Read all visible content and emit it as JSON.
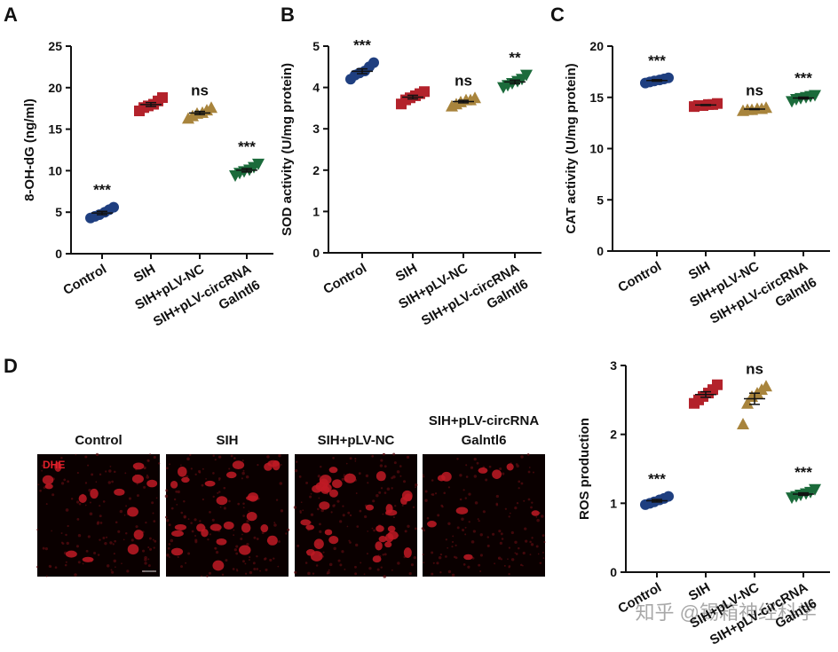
{
  "chart_data": [
    {
      "type": "dot",
      "panel": "A",
      "ylabel": "8-OH-dG (ng/ml)",
      "categories": [
        [
          "Control"
        ],
        [
          "SIH"
        ],
        [
          "SIH+pLV-NC"
        ],
        [
          "SIH+pLV-circRNA",
          "Galntl6"
        ]
      ],
      "values": [
        [
          4.3,
          4.5,
          4.7,
          5.0,
          5.3,
          5.6
        ],
        [
          17.2,
          17.6,
          17.8,
          18.0,
          18.4,
          18.8
        ],
        [
          16.3,
          16.6,
          16.9,
          17.0,
          17.3,
          17.6
        ],
        [
          9.4,
          9.7,
          9.9,
          10.1,
          10.4,
          10.8
        ]
      ],
      "colors": [
        "#1f3f80",
        "#b3222b",
        "#a8843c",
        "#1b6b3b"
      ],
      "markers": [
        "circle",
        "square",
        "triangle-up",
        "triangle-down"
      ],
      "annotations": [
        "***",
        null,
        "ns",
        "***"
      ],
      "ylim": [
        0,
        25
      ],
      "yticks": [
        0,
        5,
        10,
        15,
        20,
        25
      ]
    },
    {
      "type": "dot",
      "panel": "B",
      "ylabel": "SOD activity (U/mg protein)",
      "categories": [
        [
          "Control"
        ],
        [
          "SIH"
        ],
        [
          "SIH+pLV-NC"
        ],
        [
          "SIH+pLV-circRNA",
          "Galntl6"
        ]
      ],
      "values": [
        [
          4.2,
          4.3,
          4.35,
          4.4,
          4.5,
          4.6
        ],
        [
          3.6,
          3.7,
          3.75,
          3.8,
          3.85,
          3.9
        ],
        [
          3.55,
          3.6,
          3.65,
          3.7,
          3.7,
          3.75
        ],
        [
          4.0,
          4.05,
          4.1,
          4.15,
          4.2,
          4.3
        ]
      ],
      "colors": [
        "#1f3f80",
        "#b3222b",
        "#a8843c",
        "#1b6b3b"
      ],
      "markers": [
        "circle",
        "square",
        "triangle-up",
        "triangle-down"
      ],
      "annotations": [
        "***",
        null,
        "ns",
        "**"
      ],
      "ylim": [
        0,
        5
      ],
      "yticks": [
        0,
        1,
        2,
        3,
        4,
        5
      ]
    },
    {
      "type": "dot",
      "panel": "C",
      "ylabel": "CAT activity (U/mg protein)",
      "categories": [
        [
          "Control"
        ],
        [
          "SIH"
        ],
        [
          "SIH+pLV-NC"
        ],
        [
          "SIH+pLV-circRNA",
          "Galntl6"
        ]
      ],
      "values": [
        [
          16.4,
          16.5,
          16.6,
          16.7,
          16.8,
          16.9
        ],
        [
          14.1,
          14.2,
          14.2,
          14.3,
          14.3,
          14.4
        ],
        [
          13.7,
          13.8,
          13.8,
          13.9,
          13.9,
          14.0
        ],
        [
          14.6,
          14.8,
          14.9,
          15.0,
          15.1,
          15.2
        ]
      ],
      "colors": [
        "#1f3f80",
        "#b3222b",
        "#a8843c",
        "#1b6b3b"
      ],
      "markers": [
        "circle",
        "square",
        "triangle-up",
        "triangle-down"
      ],
      "annotations": [
        "***",
        null,
        "ns",
        "***"
      ],
      "ylim": [
        0,
        20
      ],
      "yticks": [
        0,
        5,
        10,
        15,
        20
      ]
    },
    {
      "type": "dot",
      "ylabel": "ROS production",
      "categories": [
        [
          "Control"
        ],
        [
          "SIH"
        ],
        [
          "SIH+pLV-NC"
        ],
        [
          "SIH+pLV-circRNA",
          "Galntl6"
        ]
      ],
      "values": [
        [
          0.98,
          1.0,
          1.02,
          1.05,
          1.07,
          1.1
        ],
        [
          2.45,
          2.5,
          2.55,
          2.6,
          2.65,
          2.72
        ],
        [
          2.15,
          2.45,
          2.55,
          2.6,
          2.65,
          2.7
        ],
        [
          1.08,
          1.1,
          1.12,
          1.14,
          1.16,
          1.2
        ]
      ],
      "colors": [
        "#1f3f80",
        "#b3222b",
        "#a8843c",
        "#1b6b3b"
      ],
      "markers": [
        "circle",
        "square",
        "triangle-up",
        "triangle-down"
      ],
      "annotations": [
        "***",
        null,
        "ns",
        "***"
      ],
      "ylim": [
        0,
        3
      ],
      "yticks": [
        0,
        1,
        2,
        3
      ]
    }
  ],
  "images": {
    "panel": "D",
    "stain": "DHE",
    "labels": [
      [
        "Control"
      ],
      [
        "SIH"
      ],
      [
        "SIH+pLV-NC"
      ],
      [
        "SIH+pLV-circRNA",
        "Galntl6"
      ]
    ]
  },
  "watermark": "知乎 @锡箱神经科学"
}
